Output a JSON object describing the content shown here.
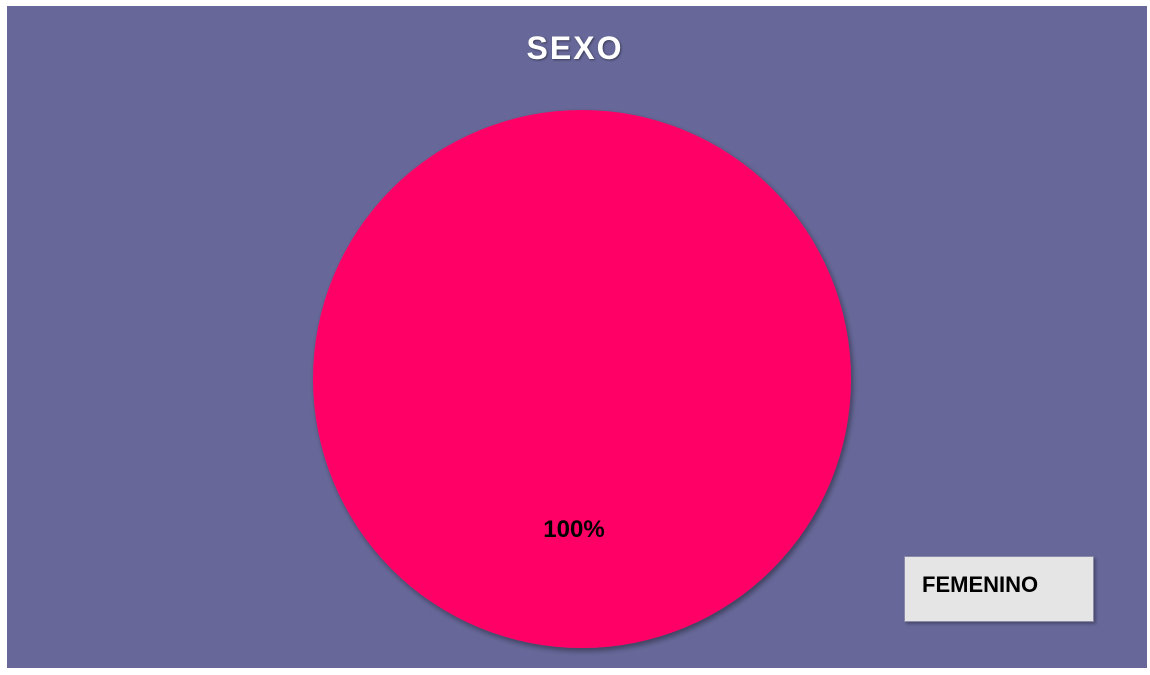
{
  "chart_data": {
    "type": "pie",
    "title": "SEXO",
    "categories": [
      "FEMENINO"
    ],
    "values": [
      100
    ],
    "data_labels": [
      "100%"
    ],
    "legend": {
      "entries": [
        "FEMENINO"
      ],
      "placement": "bottom-right"
    },
    "colors": {
      "background": "#676899",
      "slice": "#ff0066",
      "title": "#ffffff",
      "legend_background": "#e5e5e5"
    }
  }
}
